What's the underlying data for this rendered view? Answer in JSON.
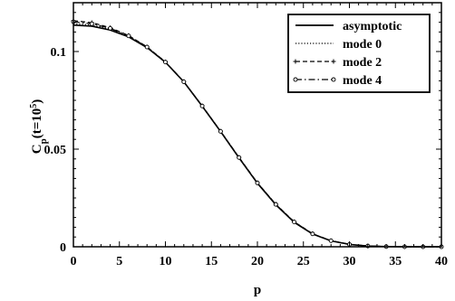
{
  "chart_data": {
    "type": "line",
    "title": "",
    "xlabel": "p",
    "ylabel_main": "C",
    "ylabel_sub": "p",
    "ylabel_paren": "(t=10",
    "ylabel_exp": "5",
    "ylabel_close": ")",
    "xlim": [
      0,
      40
    ],
    "ylim": [
      0,
      0.125
    ],
    "x_ticks": [
      0,
      5,
      10,
      15,
      20,
      25,
      30,
      35,
      40
    ],
    "x_tick_labels": [
      "0",
      "5",
      "10",
      "15",
      "20",
      "25",
      "30",
      "35",
      "40"
    ],
    "y_ticks": [
      0,
      0.05,
      0.1
    ],
    "y_tick_labels": [
      "0",
      "0.05",
      "0.1"
    ],
    "grid": false,
    "legend_position": "top-right",
    "series": [
      {
        "name": "asymptotic",
        "style": "solid",
        "marker": "none",
        "x": [
          0,
          2,
          4,
          6,
          8,
          10,
          12,
          14,
          16,
          18,
          20,
          22,
          24,
          26,
          28,
          30,
          32,
          34,
          36,
          38,
          40
        ],
        "y": [
          0.1135,
          0.113,
          0.111,
          0.1075,
          0.102,
          0.0945,
          0.0845,
          0.072,
          0.059,
          0.0455,
          0.0325,
          0.0215,
          0.0125,
          0.0065,
          0.003,
          0.0012,
          0.0004,
          0.0001,
          2e-05,
          0,
          0
        ]
      },
      {
        "name": "mode 0",
        "style": "dotted",
        "marker": "none",
        "x": [
          0,
          2,
          4,
          6,
          8,
          10,
          12,
          14,
          16,
          18,
          20,
          22,
          24,
          26,
          28,
          30,
          32,
          34,
          36,
          38,
          40
        ],
        "y": [
          0.1142,
          0.1136,
          0.1115,
          0.1078,
          0.1022,
          0.0946,
          0.0845,
          0.0721,
          0.0591,
          0.0457,
          0.0327,
          0.0217,
          0.0127,
          0.0066,
          0.0031,
          0.0012,
          0.0004,
          0.0001,
          2e-05,
          0,
          0
        ]
      },
      {
        "name": "mode 2",
        "style": "dashed",
        "marker": "plus",
        "x": [
          0,
          2,
          4,
          6,
          8,
          10,
          12,
          14,
          16,
          18,
          20,
          22,
          24,
          26,
          28,
          30,
          32,
          34,
          36,
          38,
          40
        ],
        "y": [
          0.1158,
          0.1148,
          0.1122,
          0.1082,
          0.1024,
          0.0947,
          0.0846,
          0.0722,
          0.0592,
          0.0458,
          0.0328,
          0.0218,
          0.0128,
          0.0067,
          0.0031,
          0.0013,
          0.0004,
          0.0001,
          2e-05,
          0,
          0
        ]
      },
      {
        "name": "mode 4",
        "style": "dashdot",
        "marker": "circle",
        "x": [
          0,
          2,
          4,
          6,
          8,
          10,
          12,
          14,
          16,
          18,
          20,
          22,
          24,
          26,
          28,
          30,
          32,
          34,
          36,
          38,
          40
        ],
        "y": [
          0.1152,
          0.1142,
          0.1119,
          0.108,
          0.1023,
          0.0946,
          0.0845,
          0.0721,
          0.0591,
          0.0457,
          0.0327,
          0.0217,
          0.0127,
          0.0066,
          0.0031,
          0.0012,
          0.0004,
          0.0001,
          2e-05,
          0,
          0
        ]
      }
    ]
  }
}
